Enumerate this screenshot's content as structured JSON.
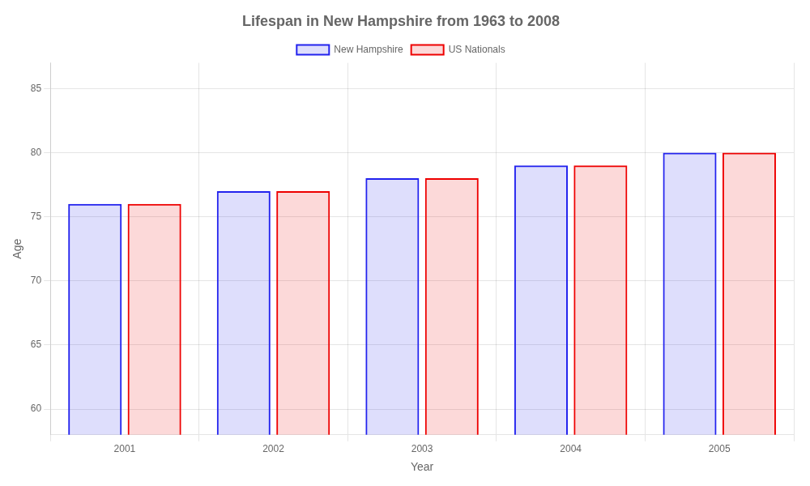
{
  "chart_data": {
    "type": "bar",
    "title": "Lifespan in New Hampshire from 1963 to 2008",
    "x_label": "Year",
    "y_label": "Age",
    "categories": [
      "2001",
      "2002",
      "2003",
      "2004",
      "2005"
    ],
    "series": [
      {
        "name": "New Hampshire",
        "color": "#2222ee",
        "values": [
          76,
          77,
          78,
          79,
          80
        ]
      },
      {
        "name": "US Nationals",
        "color": "#ee0000",
        "values": [
          76,
          77,
          78,
          79,
          80
        ]
      }
    ],
    "ylim": [
      58,
      87
    ],
    "yticks": [
      60,
      65,
      70,
      75,
      80,
      85
    ],
    "grid": true,
    "legend": "top"
  }
}
